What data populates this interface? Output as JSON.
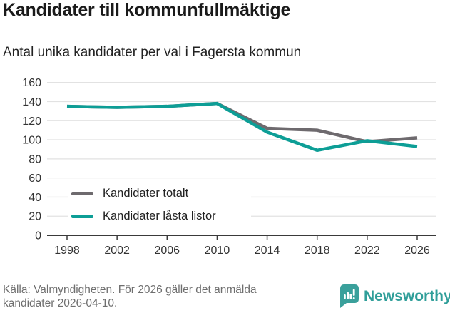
{
  "header": {
    "title": "Kandidater till kommunfullmäktige",
    "subtitle": "Antal unika kandidater per val i Fagersta kommun"
  },
  "chart_data": {
    "type": "line",
    "title": "Kandidater till kommunfullmäktige",
    "subtitle": "Antal unika kandidater per val i Fagersta kommun",
    "x": [
      1998,
      2002,
      2006,
      2010,
      2014,
      2018,
      2022,
      2026
    ],
    "series": [
      {
        "name": "Kandidater totalt",
        "color": "#6e6a6e",
        "values": [
          135,
          134,
          135,
          138,
          112,
          110,
          98,
          102
        ]
      },
      {
        "name": "Kandidater låsta listor",
        "color": "#0d9e96",
        "values": [
          135,
          134,
          135,
          138,
          108,
          89,
          99,
          93
        ]
      }
    ],
    "xlabel": "",
    "ylabel": "",
    "ylim": [
      0,
      160
    ],
    "ytick_step": 20,
    "grid": true,
    "legend_position": "inside-bottom-left",
    "colors": {
      "axis": "#3a3a3a",
      "gridline": "#e2e2e2",
      "tick_label": "#333333"
    }
  },
  "footer": {
    "source_text": "Källa: Valmyndigheten. För 2026 gäller det anmälda\nkandidater 2026-04-10.",
    "brand": "Newsworthy",
    "brand_color": "#2f9e99",
    "brand_icon": "newsworthy-bubble-barchart-icon"
  }
}
